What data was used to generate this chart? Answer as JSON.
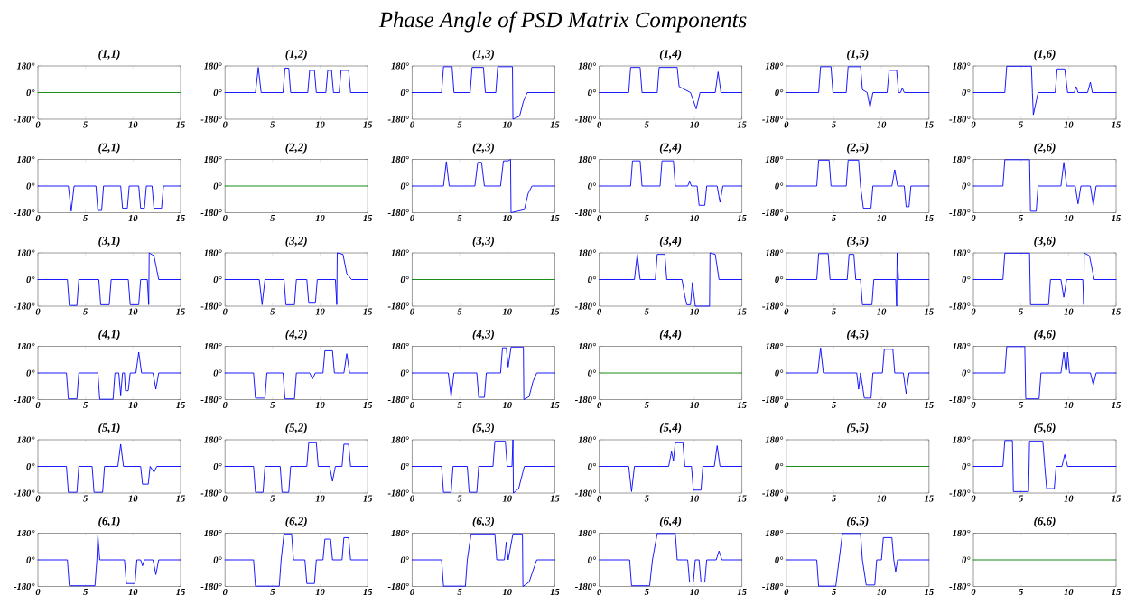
{
  "chart_data": [
    {
      "type": "line",
      "title": "(1,1)",
      "annotations": [
        "Phase Angle of PSD Matrix Components"
      ],
      "x": [
        0,
        15
      ],
      "values": [
        0,
        0
      ],
      "color": "#008000",
      "xlim": [
        0,
        15
      ],
      "ylim": [
        -180,
        180
      ],
      "xticks": [
        0,
        5,
        10,
        15
      ],
      "yticks": [
        {
          "value": -180,
          "label": "-180°"
        },
        {
          "value": 0,
          "label": "0°"
        },
        {
          "value": 180,
          "label": "180°"
        }
      ]
    },
    {
      "type": "line",
      "title": "(1,2)",
      "x": [
        0,
        3.2,
        3.5,
        3.8,
        6.1,
        6.3,
        6.7,
        6.9,
        8.7,
        8.9,
        9.4,
        9.6,
        10.6,
        10.8,
        11.2,
        11.4,
        12.0,
        12.2,
        13.0,
        13.2,
        15
      ],
      "values": [
        0,
        0,
        170,
        0,
        0,
        165,
        165,
        0,
        0,
        150,
        150,
        0,
        0,
        150,
        150,
        0,
        0,
        150,
        150,
        0,
        0
      ],
      "color": "#0000ff",
      "xlim": [
        0,
        15
      ],
      "ylim": [
        -180,
        180
      ],
      "xticks": [
        0,
        5,
        10,
        15
      ],
      "yticks": [
        {
          "value": -180,
          "label": "-180°"
        },
        {
          "value": 0,
          "label": "0°"
        },
        {
          "value": 180,
          "label": "180°"
        }
      ]
    },
    {
      "type": "line",
      "title": "(1,3)",
      "x": [
        0,
        3.1,
        3.3,
        4.2,
        4.4,
        6.1,
        6.3,
        7.5,
        7.7,
        8.8,
        9.0,
        10.55,
        10.6,
        11.3,
        11.7,
        12.1,
        15
      ],
      "values": [
        0,
        0,
        175,
        175,
        0,
        0,
        170,
        170,
        0,
        0,
        175,
        175,
        -180,
        -160,
        -60,
        0,
        0
      ],
      "color": "#0000ff",
      "xlim": [
        0,
        15
      ],
      "ylim": [
        -180,
        180
      ],
      "xticks": [
        0,
        5,
        10,
        15
      ],
      "yticks": [
        {
          "value": -180,
          "label": "-180°"
        },
        {
          "value": 0,
          "label": "0°"
        },
        {
          "value": 180,
          "label": "180°"
        }
      ]
    },
    {
      "type": "line",
      "title": "(1,4)",
      "x": [
        0,
        3.1,
        3.3,
        4.3,
        4.5,
        6.1,
        6.3,
        8.2,
        8.4,
        9.6,
        10.2,
        10.6,
        12.2,
        12.5,
        12.8,
        15
      ],
      "values": [
        0,
        0,
        170,
        170,
        0,
        0,
        170,
        170,
        40,
        0,
        -110,
        0,
        0,
        140,
        0,
        0
      ],
      "color": "#0000ff",
      "xlim": [
        0,
        15
      ],
      "ylim": [
        -180,
        180
      ],
      "xticks": [
        0,
        5,
        10,
        15
      ],
      "yticks": [
        {
          "value": -180,
          "label": "-180°"
        },
        {
          "value": 0,
          "label": "0°"
        },
        {
          "value": 180,
          "label": "180°"
        }
      ]
    },
    {
      "type": "line",
      "title": "(1,5)",
      "x": [
        0,
        3.4,
        3.6,
        4.7,
        4.9,
        6.3,
        6.5,
        7.8,
        8.0,
        8.5,
        8.8,
        9.1,
        10.6,
        10.8,
        11.6,
        11.8,
        12.0,
        12.2,
        12.4,
        15
      ],
      "values": [
        0,
        0,
        175,
        175,
        0,
        0,
        175,
        175,
        20,
        0,
        -100,
        0,
        0,
        150,
        150,
        0,
        0,
        30,
        0,
        0
      ],
      "color": "#0000ff",
      "xlim": [
        0,
        15
      ],
      "ylim": [
        -180,
        180
      ],
      "xticks": [
        0,
        5,
        10,
        15
      ],
      "yticks": [
        {
          "value": -180,
          "label": "-180°"
        },
        {
          "value": 0,
          "label": "0°"
        },
        {
          "value": 180,
          "label": "180°"
        }
      ]
    },
    {
      "type": "line",
      "title": "(1,6)",
      "x": [
        0,
        3.3,
        3.5,
        6.1,
        6.2,
        6.3,
        6.8,
        8.6,
        8.8,
        9.6,
        9.9,
        10.6,
        10.8,
        11.0,
        12.0,
        12.3,
        12.5,
        15
      ],
      "values": [
        0,
        0,
        178,
        178,
        0,
        -150,
        0,
        0,
        160,
        160,
        0,
        0,
        40,
        0,
        0,
        70,
        0,
        0
      ],
      "color": "#0000ff",
      "xlim": [
        0,
        15
      ],
      "ylim": [
        -180,
        180
      ],
      "xticks": [
        0,
        5,
        10,
        15
      ],
      "yticks": [
        {
          "value": -180,
          "label": "-180°"
        },
        {
          "value": 0,
          "label": "0°"
        },
        {
          "value": 180,
          "label": "180°"
        }
      ]
    },
    {
      "type": "line",
      "title": "(2,1)",
      "x": [
        0,
        3.2,
        3.5,
        3.8,
        6.1,
        6.3,
        6.7,
        6.9,
        8.7,
        8.9,
        9.4,
        9.6,
        10.6,
        10.8,
        11.2,
        11.4,
        12.0,
        12.2,
        13.0,
        13.2,
        15
      ],
      "values": [
        0,
        0,
        -170,
        0,
        0,
        -165,
        -165,
        0,
        0,
        -150,
        -150,
        0,
        0,
        -150,
        -150,
        0,
        0,
        -150,
        -150,
        0,
        0
      ],
      "color": "#0000ff",
      "xlim": [
        0,
        15
      ],
      "ylim": [
        -180,
        180
      ],
      "xticks": [
        0,
        5,
        10,
        15
      ],
      "yticks": [
        {
          "value": -180,
          "label": "-180°"
        },
        {
          "value": 0,
          "label": "0°"
        },
        {
          "value": 180,
          "label": "180°"
        }
      ]
    },
    {
      "type": "line",
      "title": "(2,2)",
      "x": [
        0,
        15
      ],
      "values": [
        0,
        0
      ],
      "color": "#008000",
      "xlim": [
        0,
        15
      ],
      "ylim": [
        -180,
        180
      ],
      "xticks": [
        0,
        5,
        10,
        15
      ],
      "yticks": [
        {
          "value": -180,
          "label": "-180°"
        },
        {
          "value": 0,
          "label": "0°"
        },
        {
          "value": 180,
          "label": "180°"
        }
      ]
    },
    {
      "type": "line",
      "title": "(2,3)",
      "x": [
        0,
        3.3,
        3.6,
        3.9,
        6.6,
        6.9,
        7.3,
        7.6,
        9.3,
        9.6,
        10.1,
        10.35,
        10.4,
        11.8,
        12.2,
        12.6,
        15
      ],
      "values": [
        0,
        0,
        165,
        0,
        0,
        160,
        160,
        0,
        0,
        170,
        170,
        180,
        -180,
        -160,
        -50,
        0,
        0
      ],
      "color": "#0000ff",
      "xlim": [
        0,
        15
      ],
      "ylim": [
        -180,
        180
      ],
      "xticks": [
        0,
        5,
        10,
        15
      ],
      "yticks": [
        {
          "value": -180,
          "label": "-180°"
        },
        {
          "value": 0,
          "label": "0°"
        },
        {
          "value": 180,
          "label": "180°"
        }
      ]
    },
    {
      "type": "line",
      "title": "(2,4)",
      "x": [
        0,
        3.3,
        3.5,
        4.3,
        4.5,
        6.4,
        6.6,
        7.8,
        8.0,
        9.3,
        9.5,
        9.7,
        10.3,
        10.5,
        11.1,
        11.3,
        12.4,
        12.7,
        13.0,
        15
      ],
      "values": [
        0,
        0,
        170,
        170,
        0,
        0,
        170,
        170,
        0,
        0,
        30,
        0,
        0,
        -130,
        -130,
        0,
        0,
        -110,
        0,
        0
      ],
      "color": "#0000ff",
      "xlim": [
        0,
        15
      ],
      "ylim": [
        -180,
        180
      ],
      "xticks": [
        0,
        5,
        10,
        15
      ],
      "yticks": [
        {
          "value": -180,
          "label": "-180°"
        },
        {
          "value": 0,
          "label": "0°"
        },
        {
          "value": 180,
          "label": "180°"
        }
      ]
    },
    {
      "type": "line",
      "title": "(2,5)",
      "x": [
        0,
        3.2,
        3.4,
        4.5,
        4.7,
        6.3,
        6.5,
        7.6,
        7.8,
        8.1,
        8.9,
        9.1,
        11.1,
        11.4,
        11.7,
        12.4,
        12.6,
        12.9,
        13.1,
        15
      ],
      "values": [
        0,
        0,
        175,
        175,
        0,
        0,
        175,
        175,
        0,
        -150,
        -150,
        0,
        0,
        110,
        0,
        0,
        -140,
        -140,
        0,
        0
      ],
      "color": "#0000ff",
      "xlim": [
        0,
        15
      ],
      "ylim": [
        -180,
        180
      ],
      "xticks": [
        0,
        5,
        10,
        15
      ],
      "yticks": [
        {
          "value": -180,
          "label": "-180°"
        },
        {
          "value": 0,
          "label": "0°"
        },
        {
          "value": 180,
          "label": "180°"
        }
      ]
    },
    {
      "type": "line",
      "title": "(2,6)",
      "x": [
        0,
        3.1,
        3.3,
        5.9,
        6.0,
        6.6,
        6.8,
        9.2,
        9.5,
        9.8,
        10.7,
        11.0,
        11.3,
        12.3,
        12.6,
        12.9,
        15
      ],
      "values": [
        0,
        0,
        178,
        178,
        -170,
        -170,
        0,
        0,
        160,
        0,
        0,
        -120,
        0,
        0,
        -130,
        0,
        0
      ],
      "color": "#0000ff",
      "xlim": [
        0,
        15
      ],
      "ylim": [
        -180,
        180
      ],
      "xticks": [
        0,
        5,
        10,
        15
      ],
      "yticks": [
        {
          "value": -180,
          "label": "-180°"
        },
        {
          "value": 0,
          "label": "0°"
        },
        {
          "value": 180,
          "label": "180°"
        }
      ]
    },
    {
      "type": "line",
      "title": "(3,1)",
      "x": [
        0,
        3.1,
        3.3,
        4.1,
        4.3,
        6.4,
        6.6,
        7.5,
        7.7,
        9.5,
        9.7,
        10.6,
        10.8,
        11.5,
        11.65,
        11.7,
        12.2,
        12.7,
        15
      ],
      "values": [
        0,
        0,
        -175,
        -175,
        0,
        0,
        -170,
        -170,
        0,
        0,
        -170,
        -170,
        0,
        0,
        -170,
        180,
        160,
        0,
        0
      ],
      "color": "#0000ff",
      "xlim": [
        0,
        15
      ],
      "ylim": [
        -180,
        180
      ],
      "xticks": [
        0,
        5,
        10,
        15
      ],
      "yticks": [
        {
          "value": -180,
          "label": "-180°"
        },
        {
          "value": 0,
          "label": "0°"
        },
        {
          "value": 180,
          "label": "180°"
        }
      ]
    },
    {
      "type": "line",
      "title": "(3,2)",
      "x": [
        0,
        3.6,
        3.9,
        4.2,
        6.2,
        6.4,
        7.3,
        7.5,
        8.6,
        8.8,
        9.5,
        9.7,
        11.6,
        11.75,
        11.8,
        12.4,
        12.8,
        13.3,
        15
      ],
      "values": [
        0,
        0,
        -170,
        0,
        0,
        -170,
        -170,
        0,
        0,
        -160,
        -160,
        0,
        0,
        -170,
        180,
        170,
        40,
        0,
        0
      ],
      "color": "#0000ff",
      "xlim": [
        0,
        15
      ],
      "ylim": [
        -180,
        180
      ],
      "xticks": [
        0,
        5,
        10,
        15
      ],
      "yticks": [
        {
          "value": -180,
          "label": "-180°"
        },
        {
          "value": 0,
          "label": "0°"
        },
        {
          "value": 180,
          "label": "180°"
        }
      ]
    },
    {
      "type": "line",
      "title": "(3,3)",
      "x": [
        0,
        15
      ],
      "values": [
        0,
        0
      ],
      "color": "#008000",
      "xlim": [
        0,
        15
      ],
      "ylim": [
        -180,
        180
      ],
      "xticks": [
        0,
        5,
        10,
        15
      ],
      "yticks": [
        {
          "value": -180,
          "label": "-180°"
        },
        {
          "value": 0,
          "label": "0°"
        },
        {
          "value": 180,
          "label": "180°"
        }
      ]
    },
    {
      "type": "line",
      "title": "(3,4)",
      "x": [
        0,
        3.7,
        4.0,
        4.3,
        5.9,
        6.1,
        6.9,
        7.1,
        8.7,
        9.0,
        9.2,
        9.6,
        9.8,
        10.1,
        11.6,
        11.65,
        12.2,
        12.6,
        15
      ],
      "values": [
        0,
        0,
        170,
        0,
        0,
        170,
        170,
        0,
        0,
        -110,
        -170,
        -170,
        -20,
        -180,
        -180,
        180,
        170,
        0,
        0
      ],
      "color": "#0000ff",
      "xlim": [
        0,
        15
      ],
      "ylim": [
        -180,
        180
      ],
      "xticks": [
        0,
        5,
        10,
        15
      ],
      "yticks": [
        {
          "value": -180,
          "label": "-180°"
        },
        {
          "value": 0,
          "label": "0°"
        },
        {
          "value": 180,
          "label": "180°"
        }
      ]
    },
    {
      "type": "line",
      "title": "(3,5)",
      "x": [
        0,
        3.2,
        3.4,
        4.4,
        4.6,
        6.4,
        6.6,
        7.1,
        7.3,
        7.8,
        8.0,
        9.0,
        9.2,
        11.5,
        11.6,
        11.65,
        11.8,
        15
      ],
      "values": [
        0,
        0,
        175,
        175,
        0,
        0,
        170,
        170,
        0,
        0,
        -170,
        -170,
        0,
        0,
        -180,
        180,
        0,
        0
      ],
      "color": "#0000ff",
      "xlim": [
        0,
        15
      ],
      "ylim": [
        -180,
        180
      ],
      "xticks": [
        0,
        5,
        10,
        15
      ],
      "yticks": [
        {
          "value": -180,
          "label": "-180°"
        },
        {
          "value": 0,
          "label": "0°"
        },
        {
          "value": 180,
          "label": "180°"
        }
      ]
    },
    {
      "type": "line",
      "title": "(3,6)",
      "x": [
        0,
        3.1,
        3.3,
        5.9,
        6.0,
        7.9,
        8.1,
        9.2,
        9.5,
        9.8,
        11.5,
        11.6,
        11.65,
        12.2,
        12.7,
        15
      ],
      "values": [
        0,
        0,
        178,
        178,
        -170,
        -170,
        0,
        0,
        -120,
        0,
        0,
        -170,
        180,
        160,
        0,
        0
      ],
      "color": "#0000ff",
      "xlim": [
        0,
        15
      ],
      "ylim": [
        -180,
        180
      ],
      "xticks": [
        0,
        5,
        10,
        15
      ],
      "yticks": [
        {
          "value": -180,
          "label": "-180°"
        },
        {
          "value": 0,
          "label": "0°"
        },
        {
          "value": 180,
          "label": "180°"
        }
      ]
    },
    {
      "type": "line",
      "title": "(4,1)",
      "x": [
        0,
        3.0,
        3.2,
        4.1,
        4.3,
        6.3,
        6.5,
        7.9,
        8.1,
        8.5,
        8.7,
        8.9,
        9.1,
        9.2,
        9.5,
        9.7,
        10.3,
        10.6,
        10.9,
        12.1,
        12.4,
        12.7,
        15
      ],
      "values": [
        0,
        0,
        -175,
        -175,
        0,
        0,
        -178,
        -178,
        0,
        0,
        -150,
        0,
        0,
        -120,
        -120,
        0,
        0,
        140,
        0,
        0,
        -110,
        0,
        0
      ],
      "color": "#0000ff",
      "xlim": [
        0,
        15
      ],
      "ylim": [
        -180,
        180
      ],
      "xticks": [
        0,
        5,
        10,
        15
      ],
      "yticks": [
        {
          "value": -180,
          "label": "-180°"
        },
        {
          "value": 0,
          "label": "0°"
        },
        {
          "value": 180,
          "label": "180°"
        }
      ]
    },
    {
      "type": "line",
      "title": "(4,2)",
      "x": [
        0,
        3.0,
        3.2,
        4.2,
        4.4,
        6.1,
        6.3,
        7.3,
        7.5,
        8.9,
        9.2,
        9.5,
        10.3,
        10.5,
        11.3,
        11.5,
        12.5,
        12.8,
        13.1,
        15
      ],
      "values": [
        0,
        0,
        -170,
        -170,
        0,
        0,
        -175,
        -175,
        0,
        0,
        -40,
        0,
        0,
        150,
        150,
        0,
        0,
        130,
        0,
        0
      ],
      "color": "#0000ff",
      "xlim": [
        0,
        15
      ],
      "ylim": [
        -180,
        180
      ],
      "xticks": [
        0,
        5,
        10,
        15
      ],
      "yticks": [
        {
          "value": -180,
          "label": "-180°"
        },
        {
          "value": 0,
          "label": "0°"
        },
        {
          "value": 180,
          "label": "180°"
        }
      ]
    },
    {
      "type": "line",
      "title": "(4,3)",
      "x": [
        0,
        3.8,
        4.1,
        4.4,
        6.8,
        7.0,
        7.6,
        7.8,
        9.3,
        9.5,
        9.9,
        10.1,
        10.4,
        11.7,
        11.75,
        12.3,
        12.7,
        13.1,
        15
      ],
      "values": [
        0,
        0,
        -160,
        0,
        0,
        -165,
        -165,
        0,
        0,
        170,
        170,
        40,
        175,
        175,
        -180,
        -160,
        -60,
        0,
        0
      ],
      "color": "#0000ff",
      "xlim": [
        0,
        15
      ],
      "ylim": [
        -180,
        180
      ],
      "xticks": [
        0,
        5,
        10,
        15
      ],
      "yticks": [
        {
          "value": -180,
          "label": "-180°"
        },
        {
          "value": 0,
          "label": "0°"
        },
        {
          "value": 180,
          "label": "180°"
        }
      ]
    },
    {
      "type": "line",
      "title": "(4,4)",
      "x": [
        0,
        15
      ],
      "values": [
        0,
        0
      ],
      "color": "#008000",
      "xlim": [
        0,
        15
      ],
      "ylim": [
        -180,
        180
      ],
      "xticks": [
        0,
        5,
        10,
        15
      ],
      "yticks": [
        {
          "value": -180,
          "label": "-180°"
        },
        {
          "value": 0,
          "label": "0°"
        },
        {
          "value": 180,
          "label": "180°"
        }
      ]
    },
    {
      "type": "line",
      "title": "(4,5)",
      "x": [
        0,
        3.3,
        3.6,
        3.9,
        7.4,
        7.6,
        7.8,
        8.2,
        8.9,
        9.1,
        10.1,
        10.3,
        11.2,
        11.4,
        12.3,
        12.6,
        12.9,
        15
      ],
      "values": [
        0,
        0,
        170,
        0,
        0,
        -110,
        0,
        -170,
        -170,
        0,
        0,
        160,
        160,
        0,
        0,
        -140,
        0,
        0
      ],
      "color": "#0000ff",
      "xlim": [
        0,
        15
      ],
      "ylim": [
        -180,
        180
      ],
      "xticks": [
        0,
        5,
        10,
        15
      ],
      "yticks": [
        {
          "value": -180,
          "label": "-180°"
        },
        {
          "value": 0,
          "label": "0°"
        },
        {
          "value": 180,
          "label": "180°"
        }
      ]
    },
    {
      "type": "line",
      "title": "(4,6)",
      "x": [
        0,
        3.3,
        3.5,
        5.4,
        5.5,
        6.9,
        7.1,
        9.2,
        9.5,
        9.7,
        9.8,
        9.9,
        10.1,
        12.3,
        12.6,
        12.9,
        15
      ],
      "values": [
        0,
        0,
        178,
        178,
        -175,
        -175,
        0,
        0,
        140,
        20,
        20,
        140,
        0,
        0,
        -80,
        0,
        0
      ],
      "color": "#0000ff",
      "xlim": [
        0,
        15
      ],
      "ylim": [
        -180,
        180
      ],
      "xticks": [
        0,
        5,
        10,
        15
      ],
      "yticks": [
        {
          "value": -180,
          "label": "-180°"
        },
        {
          "value": 0,
          "label": "0°"
        },
        {
          "value": 180,
          "label": "180°"
        }
      ]
    },
    {
      "type": "line",
      "title": "(5,1)",
      "x": [
        0,
        3.0,
        3.2,
        4.1,
        4.3,
        5.7,
        5.9,
        6.8,
        7.0,
        8.4,
        8.7,
        9.0,
        10.8,
        11.0,
        11.6,
        11.8,
        12.2,
        12.5,
        15
      ],
      "values": [
        0,
        0,
        -175,
        -175,
        0,
        0,
        -175,
        -175,
        0,
        0,
        150,
        0,
        0,
        -120,
        -120,
        0,
        -40,
        0,
        0
      ],
      "color": "#0000ff",
      "xlim": [
        0,
        15
      ],
      "ylim": [
        -180,
        180
      ],
      "xticks": [
        0,
        5,
        10,
        15
      ],
      "yticks": [
        {
          "value": -180,
          "label": "-180°"
        },
        {
          "value": 0,
          "label": "0°"
        },
        {
          "value": 180,
          "label": "180°"
        }
      ]
    },
    {
      "type": "line",
      "title": "(5,2)",
      "x": [
        0,
        3.0,
        3.2,
        4.0,
        4.2,
        5.8,
        6.0,
        6.7,
        6.9,
        8.6,
        8.8,
        9.6,
        9.8,
        11.0,
        11.3,
        11.6,
        12.3,
        12.5,
        13.0,
        13.2,
        15
      ],
      "values": [
        0,
        0,
        -175,
        -175,
        0,
        0,
        -175,
        -175,
        0,
        0,
        160,
        160,
        0,
        0,
        -100,
        0,
        0,
        150,
        150,
        0,
        0
      ],
      "color": "#0000ff",
      "xlim": [
        0,
        15
      ],
      "ylim": [
        -180,
        180
      ],
      "xticks": [
        0,
        5,
        10,
        15
      ],
      "yticks": [
        {
          "value": -180,
          "label": "-180°"
        },
        {
          "value": 0,
          "label": "0°"
        },
        {
          "value": 180,
          "label": "180°"
        }
      ]
    },
    {
      "type": "line",
      "title": "(5,3)",
      "x": [
        0,
        3.1,
        3.3,
        4.1,
        4.3,
        5.8,
        6.0,
        6.8,
        7.0,
        8.5,
        8.7,
        9.8,
        10.0,
        10.5,
        10.6,
        10.65,
        11.2,
        11.8,
        15
      ],
      "values": [
        0,
        0,
        -175,
        -175,
        0,
        0,
        -175,
        -175,
        0,
        0,
        170,
        170,
        0,
        0,
        180,
        -180,
        -150,
        0,
        0
      ],
      "color": "#0000ff",
      "xlim": [
        0,
        15
      ],
      "ylim": [
        -180,
        180
      ],
      "xticks": [
        0,
        5,
        10,
        15
      ],
      "yticks": [
        {
          "value": -180,
          "label": "-180°"
        },
        {
          "value": 0,
          "label": "0°"
        },
        {
          "value": 180,
          "label": "180°"
        }
      ]
    },
    {
      "type": "line",
      "title": "(5,4)",
      "x": [
        0,
        3.1,
        3.4,
        3.7,
        7.3,
        7.6,
        7.8,
        8.0,
        8.8,
        9.0,
        9.7,
        9.9,
        10.7,
        10.9,
        12.1,
        12.4,
        12.7,
        15
      ],
      "values": [
        0,
        0,
        -170,
        0,
        0,
        100,
        40,
        160,
        160,
        0,
        0,
        -160,
        -160,
        0,
        0,
        140,
        0,
        0
      ],
      "color": "#0000ff",
      "xlim": [
        0,
        15
      ],
      "ylim": [
        -180,
        180
      ],
      "xticks": [
        0,
        5,
        10,
        15
      ],
      "yticks": [
        {
          "value": -180,
          "label": "-180°"
        },
        {
          "value": 0,
          "label": "0°"
        },
        {
          "value": 180,
          "label": "180°"
        }
      ]
    },
    {
      "type": "line",
      "title": "(5,5)",
      "x": [
        0,
        15
      ],
      "values": [
        0,
        0
      ],
      "color": "#008000",
      "xlim": [
        0,
        15
      ],
      "ylim": [
        -180,
        180
      ],
      "xticks": [
        0,
        5,
        10,
        15
      ],
      "yticks": [
        {
          "value": -180,
          "label": "-180°"
        },
        {
          "value": 0,
          "label": "0°"
        },
        {
          "value": 180,
          "label": "180°"
        }
      ]
    },
    {
      "type": "line",
      "title": "(5,6)",
      "x": [
        0,
        3.1,
        3.3,
        4.1,
        4.2,
        5.8,
        5.9,
        7.3,
        7.5,
        7.7,
        8.5,
        8.7,
        9.3,
        9.6,
        9.9,
        15
      ],
      "values": [
        0,
        0,
        175,
        175,
        -170,
        -170,
        170,
        170,
        0,
        -150,
        -150,
        0,
        0,
        80,
        0,
        0
      ],
      "color": "#0000ff",
      "xlim": [
        0,
        15
      ],
      "ylim": [
        -180,
        180
      ],
      "xticks": [
        0,
        5,
        10,
        15
      ],
      "yticks": [
        {
          "value": -180,
          "label": "-180°"
        },
        {
          "value": 0,
          "label": "0°"
        },
        {
          "value": 180,
          "label": "180°"
        }
      ]
    },
    {
      "type": "line",
      "title": "(6,1)",
      "x": [
        0,
        3.1,
        3.3,
        6.0,
        6.2,
        6.3,
        6.5,
        9.1,
        9.3,
        10.2,
        10.4,
        10.8,
        11.0,
        11.2,
        12.1,
        12.4,
        12.7,
        15
      ],
      "values": [
        0,
        0,
        -175,
        -175,
        0,
        170,
        0,
        0,
        -160,
        -160,
        0,
        0,
        -40,
        0,
        0,
        -100,
        0,
        0
      ],
      "color": "#0000ff",
      "xlim": [
        0,
        15
      ],
      "ylim": [
        -180,
        180
      ],
      "xticks": [
        0,
        5,
        10,
        15
      ],
      "yticks": [
        {
          "value": -180,
          "label": "-180°"
        },
        {
          "value": 0,
          "label": "0°"
        },
        {
          "value": 180,
          "label": "180°"
        }
      ]
    },
    {
      "type": "line",
      "title": "(6,2)",
      "x": [
        0,
        3.0,
        3.2,
        5.7,
        5.9,
        6.2,
        7.0,
        7.2,
        8.4,
        8.6,
        9.4,
        9.6,
        10.3,
        10.5,
        11.1,
        11.3,
        12.3,
        12.5,
        13.0,
        13.2,
        15
      ],
      "values": [
        0,
        0,
        -178,
        -178,
        0,
        175,
        175,
        0,
        0,
        -160,
        -160,
        0,
        0,
        140,
        140,
        0,
        0,
        150,
        150,
        0,
        0
      ],
      "color": "#0000ff",
      "xlim": [
        0,
        15
      ],
      "ylim": [
        -180,
        180
      ],
      "xticks": [
        0,
        5,
        10,
        15
      ],
      "yticks": [
        {
          "value": -180,
          "label": "-180°"
        },
        {
          "value": 0,
          "label": "0°"
        },
        {
          "value": 180,
          "label": "180°"
        }
      ]
    },
    {
      "type": "line",
      "title": "(6,3)",
      "x": [
        0,
        3.1,
        3.3,
        5.6,
        5.8,
        6.2,
        8.7,
        8.9,
        9.7,
        9.9,
        10.1,
        10.6,
        11.6,
        11.65,
        12.3,
        13.1,
        15
      ],
      "values": [
        0,
        0,
        -178,
        -178,
        0,
        175,
        175,
        0,
        0,
        120,
        0,
        175,
        175,
        -180,
        -150,
        0,
        0
      ],
      "color": "#0000ff",
      "xlim": [
        0,
        15
      ],
      "ylim": [
        -180,
        180
      ],
      "xticks": [
        0,
        5,
        10,
        15
      ],
      "yticks": [
        {
          "value": -180,
          "label": "-180°"
        },
        {
          "value": 0,
          "label": "0°"
        },
        {
          "value": 180,
          "label": "180°"
        }
      ]
    },
    {
      "type": "line",
      "title": "(6,4)",
      "x": [
        0,
        3.2,
        3.4,
        5.3,
        5.6,
        6.1,
        8.0,
        8.2,
        9.3,
        9.5,
        9.9,
        10.1,
        10.5,
        10.7,
        11.1,
        11.3,
        12.3,
        12.6,
        12.9,
        15
      ],
      "values": [
        0,
        0,
        -175,
        -175,
        0,
        178,
        178,
        0,
        0,
        -150,
        -150,
        0,
        0,
        -150,
        -150,
        0,
        0,
        60,
        0,
        0
      ],
      "color": "#0000ff",
      "xlim": [
        0,
        15
      ],
      "ylim": [
        -180,
        180
      ],
      "xticks": [
        0,
        5,
        10,
        15
      ],
      "yticks": [
        {
          "value": -180,
          "label": "-180°"
        },
        {
          "value": 0,
          "label": "0°"
        },
        {
          "value": 180,
          "label": "180°"
        }
      ]
    },
    {
      "type": "line",
      "title": "(6,5)",
      "x": [
        0,
        3.2,
        3.4,
        5.2,
        5.9,
        7.8,
        8.0,
        8.4,
        9.3,
        9.5,
        10.0,
        10.2,
        11.1,
        11.3,
        11.5,
        11.7,
        15
      ],
      "values": [
        0,
        0,
        -178,
        -178,
        178,
        178,
        0,
        -170,
        -170,
        0,
        0,
        150,
        150,
        0,
        -80,
        0,
        0
      ],
      "color": "#0000ff",
      "xlim": [
        0,
        15
      ],
      "ylim": [
        -180,
        180
      ],
      "xticks": [
        0,
        5,
        10,
        15
      ],
      "yticks": [
        {
          "value": -180,
          "label": "-180°"
        },
        {
          "value": 0,
          "label": "0°"
        },
        {
          "value": 180,
          "label": "180°"
        }
      ]
    },
    {
      "type": "line",
      "title": "(6,6)",
      "x": [
        0,
        15
      ],
      "values": [
        0,
        0
      ],
      "color": "#008000",
      "xlim": [
        0,
        15
      ],
      "ylim": [
        -180,
        180
      ],
      "xticks": [
        0,
        5,
        10,
        15
      ],
      "yticks": [
        {
          "value": -180,
          "label": "-180°"
        },
        {
          "value": 0,
          "label": "0°"
        },
        {
          "value": 180,
          "label": "180°"
        }
      ]
    }
  ]
}
